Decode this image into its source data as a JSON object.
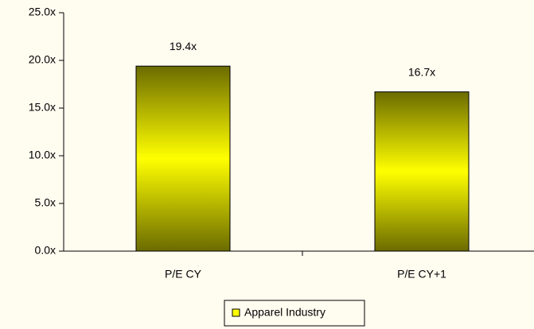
{
  "chart_data": {
    "type": "bar",
    "categories": [
      "P/E CY",
      "P/E CY+1"
    ],
    "series": [
      {
        "name": "Apparel Industry",
        "color": "#ffff00",
        "values": [
          19.4,
          16.7
        ],
        "value_labels": [
          "19.4x",
          "16.7x"
        ]
      }
    ],
    "ylim": [
      0,
      25
    ],
    "yticks": [
      {
        "value": 0,
        "label": "0.0x"
      },
      {
        "value": 5,
        "label": "5.0x"
      },
      {
        "value": 10,
        "label": "10.0x"
      },
      {
        "value": 15,
        "label": "15.0x"
      },
      {
        "value": 20,
        "label": "20.0x"
      },
      {
        "value": 25,
        "label": "25.0x"
      }
    ],
    "grid": false,
    "legend": "bottom"
  }
}
